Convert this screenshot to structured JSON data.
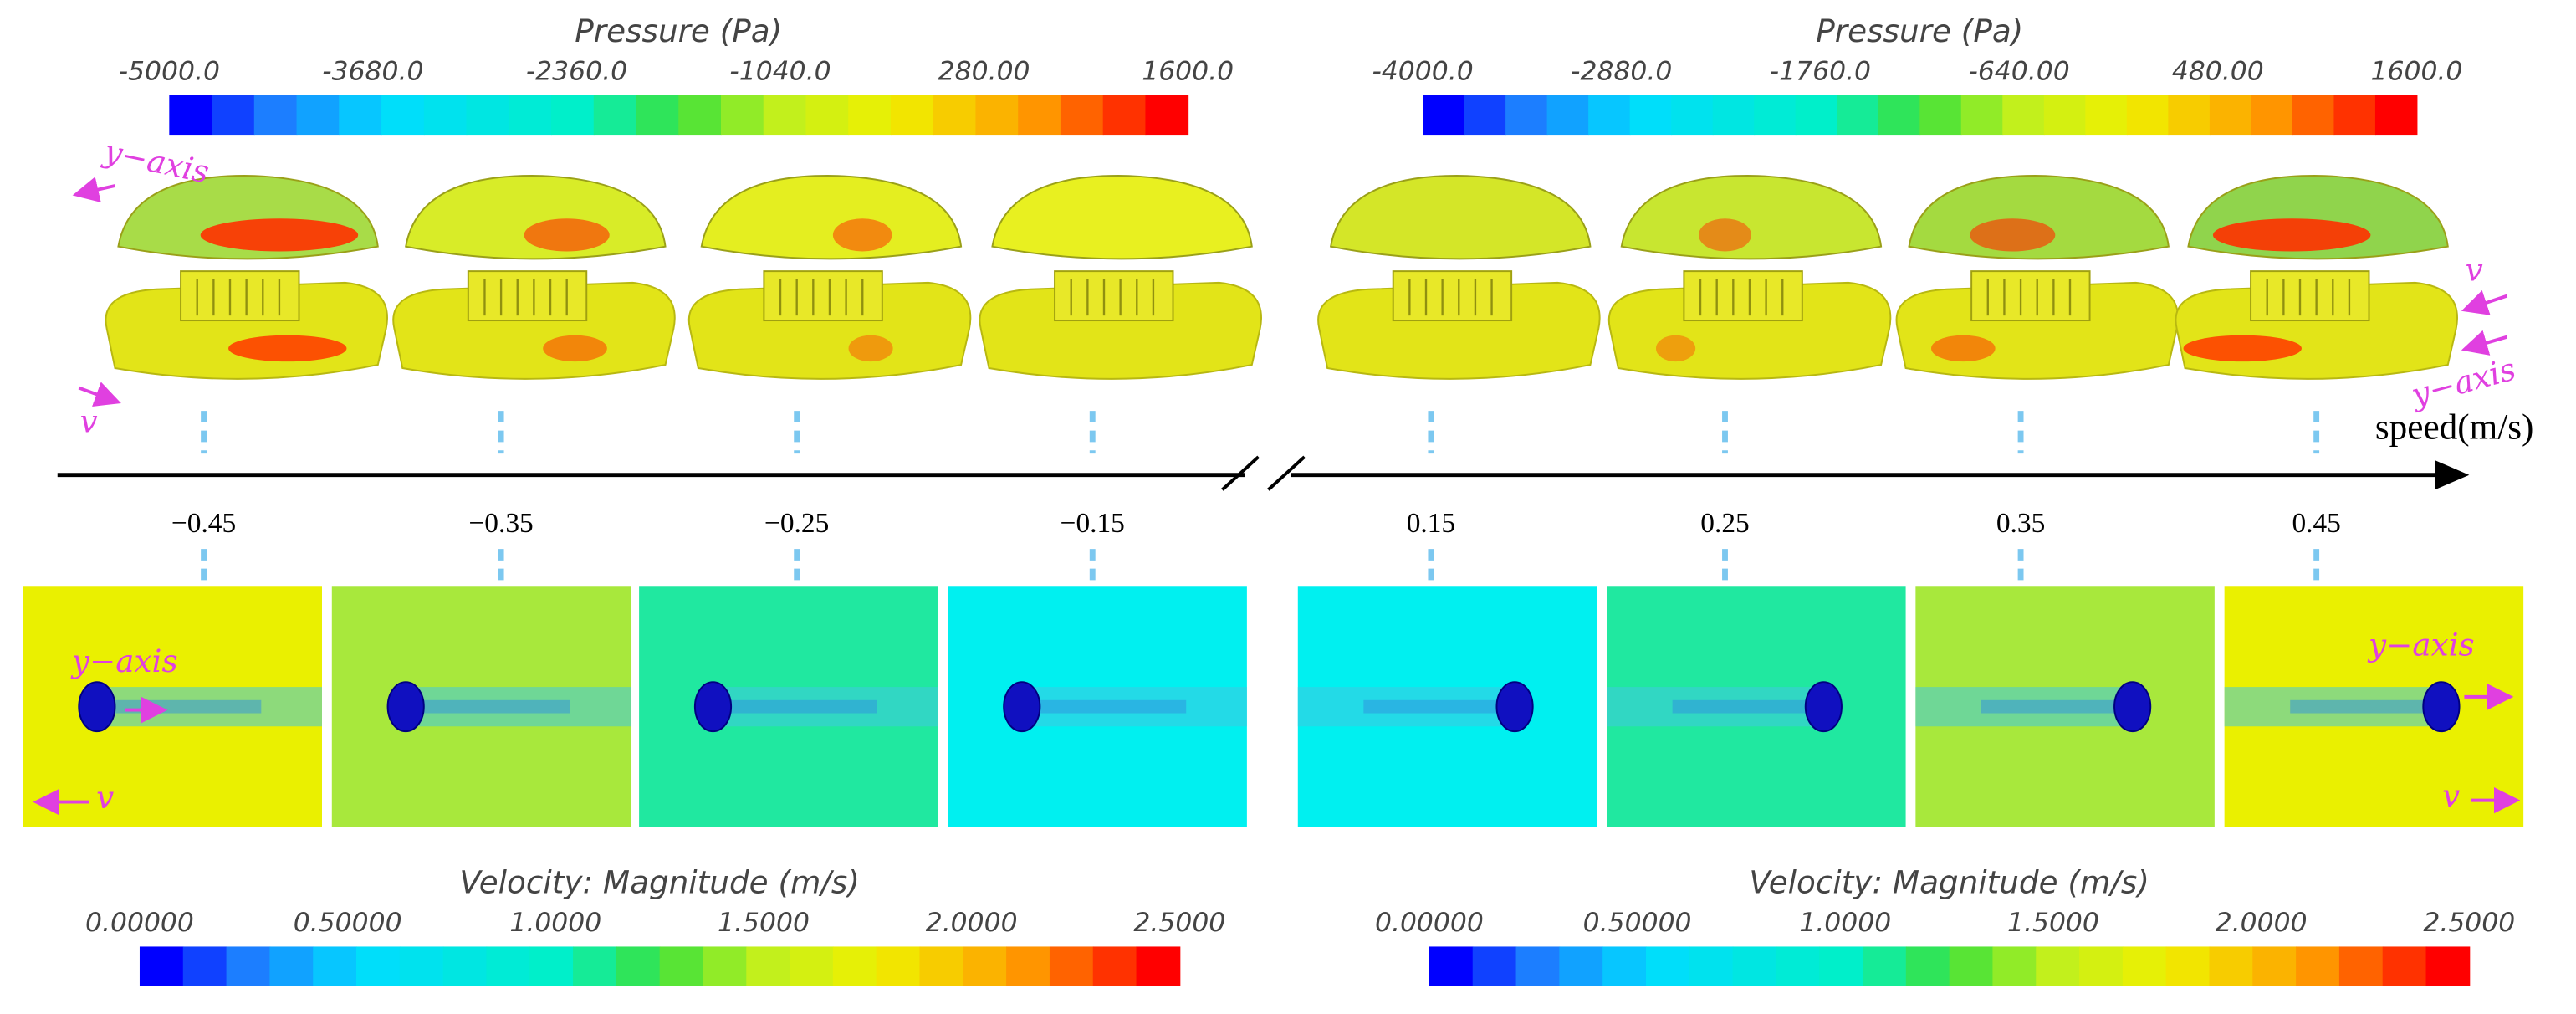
{
  "pressure_colorbars": [
    {
      "title": "Pressure (Pa)",
      "ticks": [
        "-5000.0",
        "-3680.0",
        "-2360.0",
        "-1040.0",
        "280.00",
        "1600.0"
      ]
    },
    {
      "title": "Pressure (Pa)",
      "ticks": [
        "-4000.0",
        "-2880.0",
        "-1760.0",
        "-640.00",
        "480.00",
        "1600.0"
      ]
    }
  ],
  "velocity_colorbars": [
    {
      "title": "Velocity: Magnitude (m/s)",
      "ticks": [
        "0.00000",
        "0.50000",
        "1.0000",
        "1.5000",
        "2.0000",
        "2.5000"
      ]
    },
    {
      "title": "Velocity: Magnitude (m/s)",
      "ticks": [
        "0.00000",
        "0.50000",
        "1.0000",
        "1.5000",
        "2.0000",
        "2.5000"
      ]
    }
  ],
  "speed_axis": {
    "label": "speed(m/s)",
    "ticks": [
      "−0.45",
      "−0.35",
      "−0.25",
      "−0.15",
      "0.15",
      "0.25",
      "0.35",
      "0.45"
    ]
  },
  "annotations": {
    "y_axis": "y−axis",
    "v": "v"
  }
}
